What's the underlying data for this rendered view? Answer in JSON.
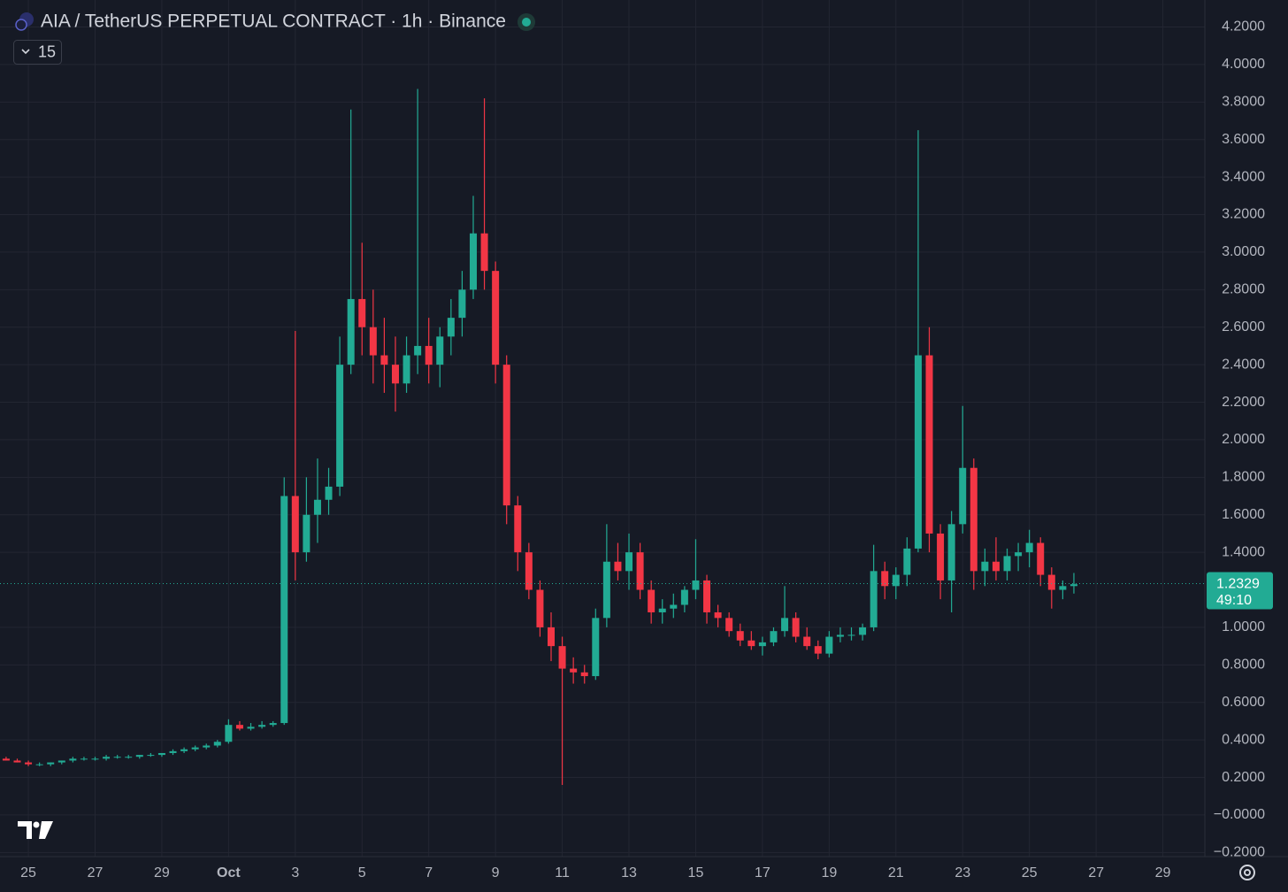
{
  "chart_data": {
    "type": "candlestick",
    "title": "AIA / TetherUS PERPETUAL CONTRACT · 1h · Binance",
    "indicator_count": 15,
    "up_color": "#22ab94",
    "down_color": "#f23645",
    "grid": true,
    "x": [
      -16,
      -8,
      0,
      8,
      16,
      24,
      32,
      40,
      48,
      56,
      64,
      72,
      80,
      88,
      96,
      104,
      112,
      120,
      128,
      136,
      144,
      152,
      160,
      168,
      176,
      184,
      192,
      200,
      208,
      216,
      224,
      232,
      240,
      248,
      256,
      264,
      272,
      280,
      288,
      296,
      304,
      312,
      320,
      328,
      336,
      344,
      352,
      360,
      368,
      376,
      384,
      392,
      400,
      408,
      416,
      424,
      432,
      440,
      448,
      456,
      464,
      472,
      480,
      488,
      496,
      504,
      512,
      520,
      528,
      536,
      544,
      552,
      560,
      568,
      576,
      584,
      592,
      600,
      608,
      616,
      624,
      632,
      640,
      648,
      656,
      664,
      672,
      680,
      688,
      696,
      704,
      712,
      720,
      728,
      736,
      744,
      752
    ],
    "open": [
      0.3,
      0.29,
      0.28,
      0.27,
      0.27,
      0.28,
      0.29,
      0.3,
      0.3,
      0.3,
      0.31,
      0.31,
      0.31,
      0.32,
      0.32,
      0.33,
      0.34,
      0.35,
      0.36,
      0.37,
      0.39,
      0.48,
      0.46,
      0.47,
      0.48,
      0.49,
      1.7,
      1.4,
      1.6,
      1.68,
      1.75,
      2.4,
      2.75,
      2.6,
      2.45,
      2.4,
      2.3,
      2.45,
      2.5,
      2.4,
      2.55,
      2.65,
      2.8,
      3.1,
      2.9,
      2.4,
      1.65,
      1.4,
      1.2,
      1.0,
      0.9,
      0.78,
      0.76,
      0.74,
      1.05,
      1.35,
      1.3,
      1.4,
      1.2,
      1.08,
      1.1,
      1.12,
      1.2,
      1.25,
      1.08,
      1.05,
      0.98,
      0.93,
      0.9,
      0.92,
      0.98,
      1.05,
      0.95,
      0.9,
      0.86,
      0.95,
      0.96,
      0.96,
      1.0,
      1.3,
      1.22,
      1.28,
      1.42,
      2.45,
      1.5,
      1.25,
      1.55,
      1.85,
      1.3,
      1.35,
      1.3,
      1.38,
      1.4,
      1.45,
      1.28,
      1.2,
      1.22
    ],
    "high": [
      0.31,
      0.3,
      0.29,
      0.28,
      0.28,
      0.29,
      0.31,
      0.31,
      0.31,
      0.32,
      0.32,
      0.32,
      0.32,
      0.33,
      0.33,
      0.35,
      0.36,
      0.37,
      0.38,
      0.4,
      0.51,
      0.5,
      0.49,
      0.5,
      0.5,
      1.8,
      2.58,
      1.8,
      1.9,
      1.85,
      2.55,
      3.76,
      3.05,
      2.8,
      2.65,
      2.55,
      2.55,
      3.87,
      2.65,
      2.6,
      2.75,
      2.9,
      3.3,
      3.82,
      2.95,
      2.45,
      1.7,
      1.45,
      1.25,
      1.08,
      0.95,
      0.84,
      0.8,
      1.1,
      1.55,
      1.45,
      1.5,
      1.45,
      1.25,
      1.15,
      1.18,
      1.22,
      1.47,
      1.28,
      1.12,
      1.08,
      1.02,
      0.98,
      0.95,
      1.0,
      1.22,
      1.08,
      1.0,
      0.93,
      0.98,
      1.0,
      1.0,
      1.02,
      1.44,
      1.35,
      1.32,
      1.48,
      3.65,
      2.6,
      1.55,
      1.62,
      2.18,
      1.9,
      1.42,
      1.48,
      1.42,
      1.45,
      1.52,
      1.48,
      1.32,
      1.25,
      1.29
    ],
    "low": [
      0.29,
      0.28,
      0.26,
      0.26,
      0.26,
      0.27,
      0.28,
      0.29,
      0.29,
      0.29,
      0.3,
      0.3,
      0.3,
      0.31,
      0.31,
      0.32,
      0.33,
      0.34,
      0.35,
      0.36,
      0.38,
      0.45,
      0.45,
      0.46,
      0.47,
      0.48,
      1.25,
      1.35,
      1.45,
      1.6,
      1.7,
      2.35,
      2.45,
      2.3,
      2.25,
      2.15,
      2.25,
      2.35,
      2.3,
      2.28,
      2.45,
      2.55,
      2.75,
      2.8,
      2.3,
      1.55,
      1.3,
      1.15,
      0.95,
      0.82,
      0.16,
      0.7,
      0.7,
      0.72,
      1.0,
      1.25,
      1.2,
      1.15,
      1.02,
      1.02,
      1.05,
      1.08,
      1.15,
      1.02,
      1.0,
      0.95,
      0.9,
      0.88,
      0.85,
      0.9,
      0.95,
      0.92,
      0.88,
      0.83,
      0.84,
      0.92,
      0.93,
      0.93,
      0.98,
      1.15,
      1.15,
      1.22,
      1.4,
      1.4,
      1.15,
      1.08,
      1.5,
      1.2,
      1.22,
      1.25,
      1.25,
      1.3,
      1.32,
      1.22,
      1.1,
      1.15,
      1.18
    ],
    "close": [
      0.29,
      0.28,
      0.27,
      0.27,
      0.28,
      0.29,
      0.3,
      0.3,
      0.3,
      0.31,
      0.31,
      0.31,
      0.32,
      0.32,
      0.33,
      0.34,
      0.35,
      0.36,
      0.37,
      0.39,
      0.48,
      0.46,
      0.47,
      0.48,
      0.49,
      1.7,
      1.4,
      1.6,
      1.68,
      1.75,
      2.4,
      2.75,
      2.6,
      2.45,
      2.4,
      2.3,
      2.45,
      2.5,
      2.4,
      2.55,
      2.65,
      2.8,
      3.1,
      2.9,
      2.4,
      1.65,
      1.4,
      1.2,
      1.0,
      0.9,
      0.78,
      0.76,
      0.74,
      1.05,
      1.35,
      1.3,
      1.4,
      1.2,
      1.08,
      1.1,
      1.12,
      1.2,
      1.25,
      1.08,
      1.05,
      0.98,
      0.93,
      0.9,
      0.92,
      0.98,
      1.05,
      0.95,
      0.9,
      0.86,
      0.95,
      0.96,
      0.96,
      1.0,
      1.3,
      1.22,
      1.28,
      1.42,
      2.45,
      1.5,
      1.25,
      1.55,
      1.85,
      1.3,
      1.35,
      1.3,
      1.38,
      1.4,
      1.45,
      1.28,
      1.2,
      1.22,
      1.23
    ],
    "xlim": [
      -20.4,
      846.2
    ],
    "xticks": [
      {
        "value": 0,
        "label": "25"
      },
      {
        "value": 48,
        "label": "27"
      },
      {
        "value": 96,
        "label": "29"
      },
      {
        "value": 144,
        "label": "Oct"
      },
      {
        "value": 192,
        "label": "3"
      },
      {
        "value": 240,
        "label": "5"
      },
      {
        "value": 288,
        "label": "7"
      },
      {
        "value": 336,
        "label": "9"
      },
      {
        "value": 384,
        "label": "11"
      },
      {
        "value": 432,
        "label": "13"
      },
      {
        "value": 480,
        "label": "15"
      },
      {
        "value": 528,
        "label": "17"
      },
      {
        "value": 576,
        "label": "19"
      },
      {
        "value": 624,
        "label": "21"
      },
      {
        "value": 672,
        "label": "23"
      },
      {
        "value": 720,
        "label": "25"
      },
      {
        "value": 768,
        "label": "27"
      },
      {
        "value": 816,
        "label": "29"
      }
    ],
    "ylim": [
      -0.222,
      4.344
    ],
    "yticks": [
      {
        "value": 4.2,
        "label": "4.2000"
      },
      {
        "value": 4.0,
        "label": "4.0000"
      },
      {
        "value": 3.8,
        "label": "3.8000"
      },
      {
        "value": 3.6,
        "label": "3.6000"
      },
      {
        "value": 3.4,
        "label": "3.4000"
      },
      {
        "value": 3.2,
        "label": "3.2000"
      },
      {
        "value": 3.0,
        "label": "3.0000"
      },
      {
        "value": 2.8,
        "label": "2.8000"
      },
      {
        "value": 2.6,
        "label": "2.6000"
      },
      {
        "value": 2.4,
        "label": "2.4000"
      },
      {
        "value": 2.2,
        "label": "2.2000"
      },
      {
        "value": 2.0,
        "label": "2.0000"
      },
      {
        "value": 1.8,
        "label": "1.8000"
      },
      {
        "value": 1.6,
        "label": "1.6000"
      },
      {
        "value": 1.4,
        "label": "1.4000"
      },
      {
        "value": 1.0,
        "label": "1.0000"
      },
      {
        "value": 0.8,
        "label": "0.8000"
      },
      {
        "value": 0.6,
        "label": "0.6000"
      },
      {
        "value": 0.4,
        "label": "0.4000"
      },
      {
        "value": 0.2,
        "label": "0.2000"
      },
      {
        "value": 0,
        "label": "−0.0000"
      },
      {
        "value": -0.2,
        "label": "−0.2000"
      }
    ],
    "last_price": {
      "value": 1.2329,
      "label": "1.2329",
      "countdown": "49:10"
    }
  }
}
